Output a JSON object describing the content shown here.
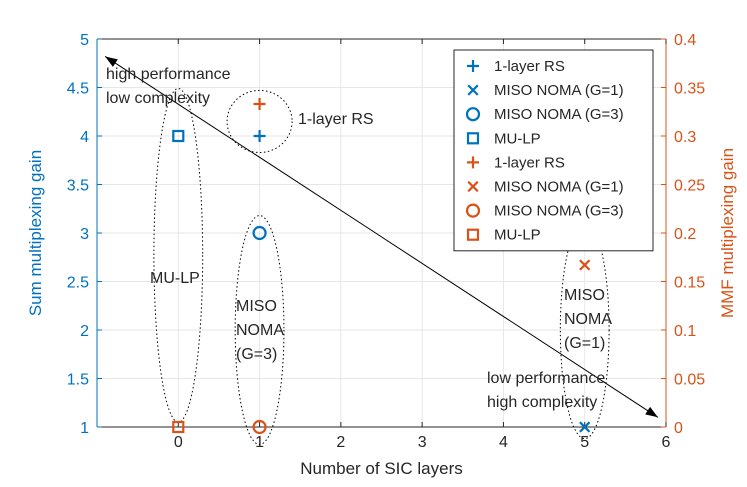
{
  "chart_data": {
    "type": "scatter",
    "title": "",
    "xlabel": "Number of SIC layers",
    "ylabel_left": "Sum multiplexing gain",
    "ylabel_right": "MMF multiplexing gain",
    "xlim": [
      -1,
      6
    ],
    "ylim_left": [
      1,
      5
    ],
    "ylim_right": [
      0,
      0.4
    ],
    "grid": true,
    "legend_position": "top-right",
    "x_ticks": [
      "0",
      "1",
      "2",
      "3",
      "4",
      "5",
      "6"
    ],
    "y_left_ticks": [
      "1",
      "1.5",
      "2",
      "2.5",
      "3",
      "3.5",
      "4",
      "4.5",
      "5"
    ],
    "y_right_ticks": [
      "0",
      "0.05",
      "0.1",
      "0.15",
      "0.2",
      "0.25",
      "0.3",
      "0.35",
      "0.4"
    ],
    "colors": {
      "left_axis": "#0072bd",
      "right_axis": "#d95319",
      "text": "#262626",
      "grid": "#e6e6e6"
    },
    "series": [
      {
        "name": "1-layer RS",
        "axis": "left",
        "marker": "plus",
        "color": "#0072bd",
        "x": 1,
        "y": 4
      },
      {
        "name": "MISO NOMA (G=1)",
        "axis": "left",
        "marker": "x",
        "color": "#0072bd",
        "x": 5,
        "y": 1
      },
      {
        "name": "MISO NOMA (G=3)",
        "axis": "left",
        "marker": "circle",
        "color": "#0072bd",
        "x": 1,
        "y": 3
      },
      {
        "name": "MU-LP",
        "axis": "left",
        "marker": "square",
        "color": "#0072bd",
        "x": 0,
        "y": 4
      },
      {
        "name": "1-layer RS",
        "axis": "right",
        "marker": "plus",
        "color": "#d95319",
        "x": 1,
        "y": 0.333
      },
      {
        "name": "MISO NOMA (G=1)",
        "axis": "right",
        "marker": "x",
        "color": "#d95319",
        "x": 5,
        "y": 0.167
      },
      {
        "name": "MISO NOMA (G=3)",
        "axis": "right",
        "marker": "circle",
        "color": "#d95319",
        "x": 1,
        "y": 0
      },
      {
        "name": "MU-LP",
        "axis": "right",
        "marker": "square",
        "color": "#d95319",
        "x": 0,
        "y": 0
      }
    ],
    "groups": [
      {
        "lines": [
          "MU-LP"
        ],
        "cx": 0,
        "cy": 2.77,
        "rx": 0.3,
        "ry": 1.72
      },
      {
        "lines": [
          "MISO",
          "NOMA",
          "(G=3)"
        ],
        "cx": 1,
        "cy": 2.0,
        "rx": 0.3,
        "ry": 1.18
      },
      {
        "lines": [
          "MISO",
          "NOMA",
          "(G=1)"
        ],
        "cx": 5,
        "cy": 2.0,
        "rx": 0.3,
        "ry": 1.12
      },
      {
        "lines": [
          "1-layer RS"
        ],
        "cx": 1,
        "cy": 4.15,
        "rx": 0.4,
        "ry": 0.32
      }
    ],
    "annotations": {
      "high": [
        "high performance",
        "low complexity"
      ],
      "low": [
        "low performance",
        "high complexity"
      ],
      "arrow": {
        "from": [
          -0.9,
          4.82
        ],
        "to": [
          5.9,
          1.1
        ]
      }
    }
  }
}
